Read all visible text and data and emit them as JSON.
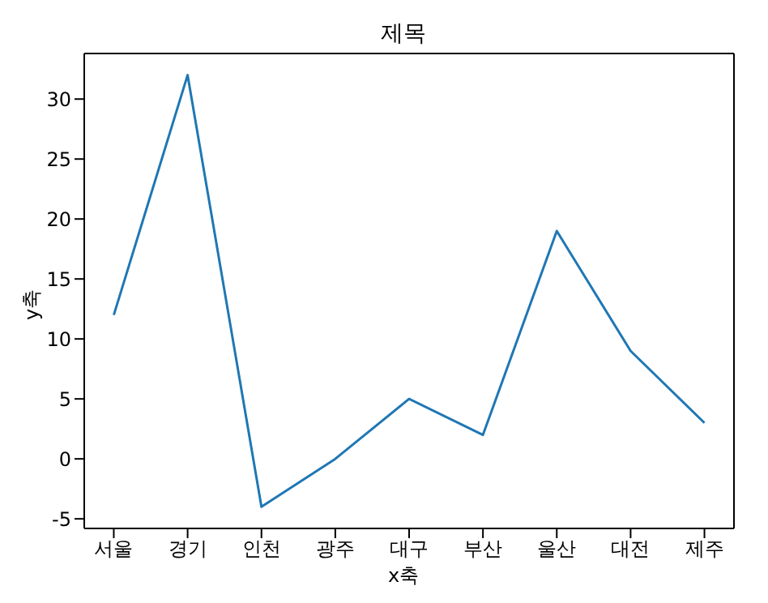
{
  "chart_data": {
    "type": "line",
    "title": "제목",
    "xlabel": "x축",
    "ylabel": "y축",
    "categories": [
      "서울",
      "경기",
      "인천",
      "광주",
      "대구",
      "부산",
      "울산",
      "대전",
      "제주"
    ],
    "series": [
      {
        "color": "#1f77b4",
        "values": [
          12,
          32,
          -4,
          0,
          5,
          2,
          19,
          9,
          3
        ]
      }
    ],
    "ylim": [
      -5.8,
      33.8
    ],
    "yticks": [
      -5,
      0,
      5,
      10,
      15,
      20,
      25,
      30
    ],
    "grid": false,
    "legend": false,
    "marker": "none",
    "line_style": "solid"
  }
}
